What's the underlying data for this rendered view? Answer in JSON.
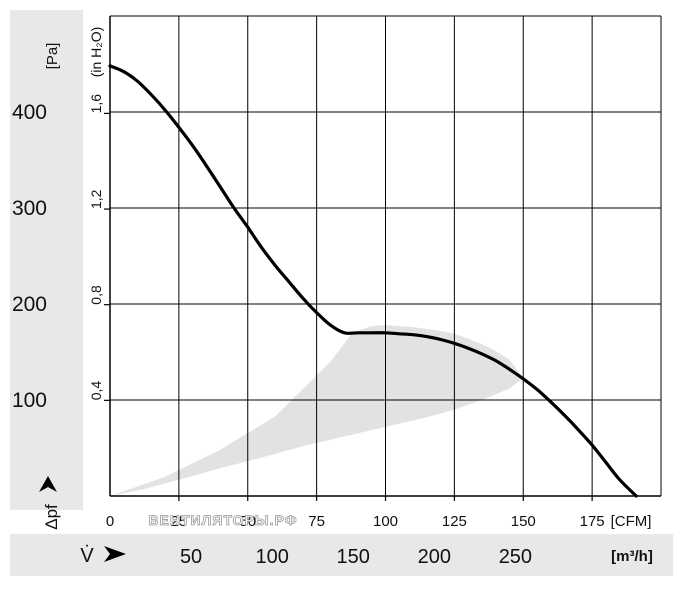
{
  "chart_data": {
    "type": "line",
    "title": "",
    "x_primary": {
      "unit": "[CFM]",
      "ticks": [
        0,
        25,
        50,
        75,
        100,
        125,
        150,
        175
      ],
      "range": [
        0,
        200
      ]
    },
    "x_secondary": {
      "symbol": "V̇",
      "unit": "[m³/h]",
      "ticks": [
        50,
        100,
        150,
        200,
        250
      ]
    },
    "y_primary": {
      "unit": "[Pa]",
      "symbol": "Δpf",
      "ticks": [
        100,
        200,
        300,
        400
      ],
      "range": [
        0,
        500
      ]
    },
    "y_secondary": {
      "unit": "(in H₂O)",
      "ticks": [
        "0,4",
        "0,8",
        "1,2",
        "1,6"
      ],
      "tick_values": [
        0.4,
        0.8,
        1.2,
        1.6
      ]
    },
    "grid": true,
    "series": [
      {
        "x": [
          0,
          5,
          10,
          15,
          20,
          25,
          30,
          35,
          40,
          45,
          50,
          55,
          60,
          65,
          70,
          75,
          80,
          85,
          90,
          95,
          100,
          105,
          110,
          115,
          120,
          125,
          130,
          135,
          140,
          145,
          150,
          155,
          160,
          165,
          170,
          175,
          180,
          185,
          191
        ],
        "y": [
          448,
          442,
          432,
          418,
          402,
          384,
          365,
          344,
          322,
          300,
          280,
          259,
          240,
          223,
          206,
          191,
          178,
          170,
          170,
          170,
          170,
          169,
          168,
          166,
          163,
          159,
          154,
          148,
          141,
          132,
          122,
          111,
          98,
          84,
          69,
          53,
          35,
          17,
          0
        ]
      }
    ],
    "operating_region": {
      "x": [
        0,
        20,
        40,
        60,
        80,
        88,
        95,
        100,
        105,
        110,
        115,
        120,
        125,
        130,
        135,
        140,
        145,
        150,
        145,
        135,
        125,
        115,
        100,
        85,
        70,
        55,
        40,
        25,
        12,
        0
      ],
      "y": [
        0,
        20,
        48,
        83,
        140,
        170,
        177,
        178,
        177,
        176,
        174,
        172,
        169,
        164,
        158,
        151,
        142,
        123,
        112,
        100,
        90,
        82,
        72,
        62,
        52,
        40,
        29,
        17,
        7,
        0
      ]
    },
    "colors": {
      "curve": "#000000",
      "grid": "#000000",
      "region": "#e2e2e2",
      "side_band": "#e8e8e8"
    }
  },
  "watermark": "ВЕНТИЛЯТОРЫ.РФ"
}
